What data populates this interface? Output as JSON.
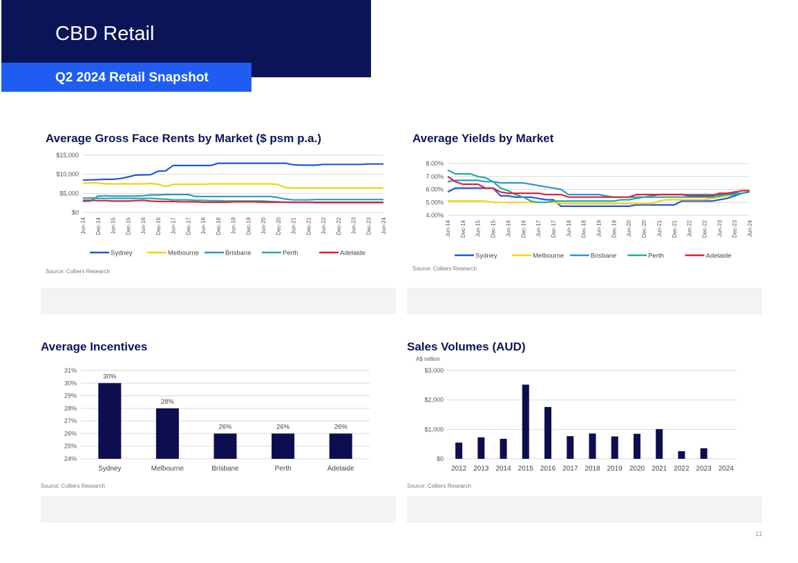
{
  "header": {
    "title": "CBD Retail",
    "subtitle": "Q2 2024 Retail Snapshot"
  },
  "page_number": "11",
  "colors": {
    "navy": "#0c1458",
    "accent_blue": "#1f5cf2",
    "bar": "#0c0e4f"
  },
  "chart_data": [
    {
      "id": "rents",
      "type": "line",
      "title": "Average Gross Face Rents by Market ($ psm p.a.)",
      "source": "Source: Colliers Research",
      "ylim": [
        0,
        15000
      ],
      "yticks": [
        0,
        5000,
        10000,
        15000
      ],
      "ytick_labels": [
        "$0",
        "$5,000",
        "$10,000",
        "$15,000"
      ],
      "xtick_labels": [
        "Jun-14",
        "Dec-14",
        "Jun-15",
        "Dec-15",
        "Jun-16",
        "Dec-16",
        "Jun-17",
        "Dec-17",
        "Jun-18",
        "Dec-18",
        "Jun-19",
        "Dec-19",
        "Jun-20",
        "Dec-20",
        "Jun-21",
        "Dec-21",
        "Jun-22",
        "Dec-22",
        "Jun-23",
        "Dec-23",
        "Jun-24"
      ],
      "grid": true,
      "legend_position": "bottom",
      "series": [
        {
          "name": "Sydney",
          "color": "#1f55e0",
          "values": [
            8500,
            8550,
            8600,
            8700,
            8700,
            8900,
            9300,
            9800,
            9850,
            9900,
            10800,
            10900,
            12300,
            12300,
            12300,
            12300,
            12300,
            12300,
            12900,
            12900,
            12900,
            12900,
            12900,
            12900,
            12900,
            12900,
            12900,
            12900,
            12500,
            12400,
            12400,
            12400,
            12600,
            12600,
            12600,
            12600,
            12600,
            12600,
            12700,
            12700,
            12700
          ]
        },
        {
          "name": "Melbourne",
          "color": "#f7d112",
          "values": [
            7700,
            7750,
            7750,
            7500,
            7500,
            7500,
            7500,
            7500,
            7500,
            7600,
            7400,
            6800,
            7400,
            7400,
            7400,
            7400,
            7400,
            7500,
            7500,
            7500,
            7500,
            7500,
            7500,
            7500,
            7500,
            7500,
            7300,
            6500,
            6400,
            6400,
            6400,
            6400,
            6400,
            6400,
            6400,
            6400,
            6400,
            6400,
            6400,
            6400,
            6400
          ]
        },
        {
          "name": "Brisbane",
          "color": "#2e93d2",
          "values": [
            2900,
            3000,
            4300,
            4400,
            4300,
            4300,
            4300,
            4300,
            4400,
            4600,
            4600,
            4700,
            4700,
            4700,
            4700,
            4200,
            4200,
            4200,
            4200,
            4200,
            4200,
            4200,
            4200,
            4200,
            4200,
            4200,
            3900,
            3500,
            3300,
            3300,
            3300,
            3400,
            3400,
            3400,
            3400,
            3400,
            3400,
            3400,
            3400,
            3400,
            3400
          ]
        },
        {
          "name": "Perth",
          "color": "#1fae98",
          "values": [
            3800,
            3800,
            3700,
            3700,
            3700,
            3700,
            3700,
            3700,
            3700,
            3700,
            3600,
            3500,
            3300,
            3300,
            3300,
            3200,
            3200,
            3100,
            3100,
            3000,
            3000,
            3000,
            3000,
            3000,
            3000,
            2900,
            2800,
            2700,
            2700,
            2700,
            2700,
            2700,
            2700,
            2700,
            2700,
            2700,
            2700,
            2700,
            2700,
            2700,
            2700
          ]
        },
        {
          "name": "Adelaide",
          "color": "#e01f3d",
          "values": [
            3200,
            3200,
            3100,
            3100,
            3000,
            3000,
            3000,
            3100,
            3200,
            3000,
            2900,
            2900,
            2900,
            2800,
            2800,
            2800,
            2700,
            2700,
            2700,
            2700,
            2800,
            2800,
            2800,
            2800,
            2700,
            2700,
            2700,
            2700,
            2700,
            2700,
            2700,
            2600,
            2600,
            2600,
            2600,
            2600,
            2600,
            2600,
            2600,
            2600,
            2600
          ]
        }
      ]
    },
    {
      "id": "yields",
      "type": "line",
      "title": "Average Yields by Market",
      "source": "Source: Colliers Research",
      "ylim": [
        4,
        8
      ],
      "yticks": [
        4,
        5,
        6,
        7,
        8
      ],
      "ytick_labels": [
        "4.00%",
        "5.00%",
        "6.00%",
        "7.00%",
        "8.00%"
      ],
      "xtick_labels": [
        "Jun-14",
        "Dec-14",
        "Jun-15",
        "Dec-15",
        "Jun-16",
        "Dec-16",
        "Jun-17",
        "Dec-17",
        "Jun-18",
        "Dec-18",
        "Jun-19",
        "Dec-19",
        "Jun-20",
        "Dec-20",
        "Jun-21",
        "Dec-21",
        "Jun-22",
        "Dec-22",
        "Jun-23",
        "Dec-23",
        "Jun-24"
      ],
      "grid": true,
      "legend_position": "bottom",
      "series": [
        {
          "name": "Sydney",
          "color": "#1f55e0",
          "values": [
            5.8,
            6.1,
            6.1,
            6.1,
            6.1,
            6.1,
            6.1,
            5.5,
            5.5,
            5.4,
            5.4,
            5.4,
            5.3,
            5.2,
            5.2,
            4.7,
            4.7,
            4.7,
            4.7,
            4.7,
            4.7,
            4.7,
            4.7,
            4.7,
            4.7,
            4.8,
            4.8,
            4.8,
            4.8,
            4.8,
            4.8,
            5.1,
            5.1,
            5.1,
            5.1,
            5.1,
            5.2,
            5.3,
            5.5,
            5.7,
            5.8
          ]
        },
        {
          "name": "Melbourne",
          "color": "#f7d112",
          "values": [
            5.1,
            5.1,
            5.1,
            5.1,
            5.1,
            5.1,
            5.0,
            5.0,
            5.0,
            5.0,
            5.0,
            5.0,
            5.0,
            5.0,
            5.0,
            4.9,
            4.9,
            4.9,
            4.9,
            4.9,
            4.9,
            4.9,
            4.9,
            4.9,
            4.9,
            4.9,
            4.9,
            4.9,
            5.1,
            5.2,
            5.2,
            5.2,
            5.2,
            5.2,
            5.2,
            5.3,
            5.4,
            5.5,
            5.6,
            5.7,
            5.8
          ]
        },
        {
          "name": "Brisbane",
          "color": "#2e93d2",
          "values": [
            6.6,
            6.7,
            6.7,
            6.7,
            6.7,
            6.6,
            6.6,
            6.5,
            6.5,
            6.5,
            6.5,
            6.4,
            6.3,
            6.2,
            6.1,
            6.0,
            5.6,
            5.6,
            5.6,
            5.6,
            5.6,
            5.5,
            5.4,
            5.4,
            5.4,
            5.4,
            5.4,
            5.5,
            5.6,
            5.6,
            5.6,
            5.6,
            5.6,
            5.6,
            5.6,
            5.6,
            5.6,
            5.7,
            5.7,
            5.7,
            5.8
          ]
        },
        {
          "name": "Perth",
          "color": "#1fae98",
          "values": [
            7.5,
            7.2,
            7.2,
            7.2,
            7.0,
            6.9,
            6.6,
            6.1,
            5.9,
            5.6,
            5.4,
            5.1,
            5.0,
            5.0,
            5.1,
            5.1,
            5.1,
            5.1,
            5.1,
            5.1,
            5.1,
            5.1,
            5.1,
            5.2,
            5.2,
            5.3,
            5.4,
            5.4,
            5.4,
            5.4,
            5.4,
            5.4,
            5.4,
            5.4,
            5.4,
            5.4,
            5.5,
            5.6,
            5.6,
            5.7,
            5.8
          ]
        },
        {
          "name": "Adelaide",
          "color": "#e01f3d",
          "values": [
            7.0,
            6.6,
            6.4,
            6.4,
            6.4,
            6.1,
            6.1,
            5.8,
            5.7,
            5.7,
            5.7,
            5.7,
            5.7,
            5.6,
            5.6,
            5.6,
            5.4,
            5.4,
            5.4,
            5.4,
            5.4,
            5.4,
            5.4,
            5.4,
            5.4,
            5.6,
            5.6,
            5.6,
            5.6,
            5.6,
            5.6,
            5.6,
            5.5,
            5.5,
            5.5,
            5.5,
            5.7,
            5.7,
            5.8,
            5.9,
            5.9
          ]
        }
      ]
    },
    {
      "id": "incentives",
      "type": "bar",
      "title": "Average Incentives",
      "source": "Source: Colliers Research",
      "categories": [
        "Sydney",
        "Melbourne",
        "Brisbane",
        "Perth",
        "Adelaide"
      ],
      "values": [
        30,
        28,
        26,
        26,
        26
      ],
      "data_labels": [
        "30%",
        "28%",
        "26%",
        "26%",
        "26%"
      ],
      "ylim": [
        24,
        31
      ],
      "yticks": [
        24,
        25,
        26,
        27,
        28,
        29,
        30,
        31
      ],
      "ytick_labels": [
        "24%",
        "25%",
        "26%",
        "27%",
        "28%",
        "29%",
        "30%",
        "31%"
      ],
      "grid": true,
      "color": "#0c0e4f"
    },
    {
      "id": "sales",
      "type": "bar",
      "title": "Sales Volumes (AUD)",
      "source": "Source: Colliers Research",
      "ylabel": "A$ million",
      "categories": [
        "2012",
        "2013",
        "2014",
        "2015",
        "2016",
        "2017",
        "2018",
        "2019",
        "2020",
        "2021",
        "2022",
        "2023",
        "2024"
      ],
      "values": [
        550,
        730,
        680,
        2520,
        1760,
        770,
        860,
        760,
        850,
        1010,
        260,
        360,
        0
      ],
      "ylim": [
        0,
        3000
      ],
      "yticks": [
        0,
        1000,
        2000,
        3000
      ],
      "ytick_labels": [
        "$0",
        "$1,000",
        "$2,000",
        "$3,000"
      ],
      "grid": true,
      "color": "#0c0e4f"
    }
  ]
}
